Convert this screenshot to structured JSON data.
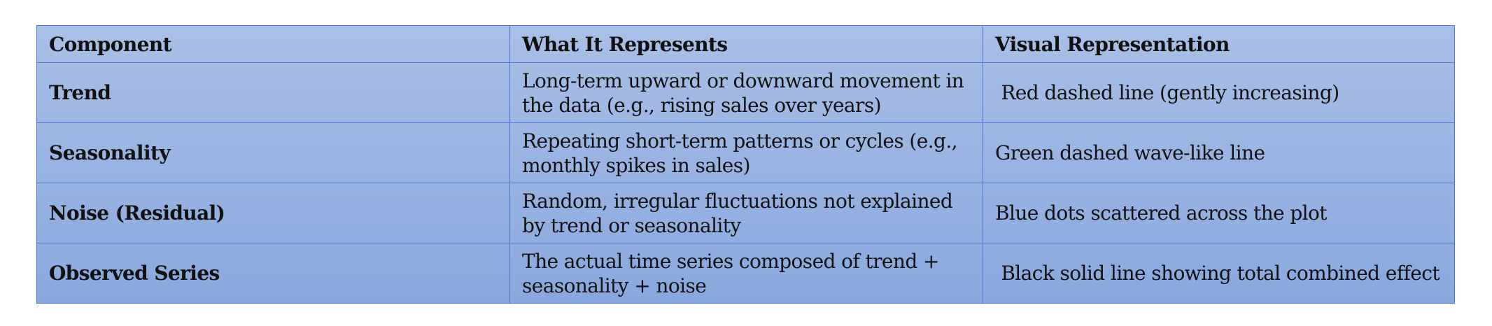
{
  "table": {
    "headers": [
      "Component",
      "What It Represents",
      "Visual Representation"
    ],
    "rows": [
      {
        "component": "Trend",
        "represents": "Long-term upward or downward movement in the data (e.g., rising sales over years)",
        "visual": " Red dashed line (gently increasing)"
      },
      {
        "component": "Seasonality",
        "represents": "Repeating short-term patterns or cycles (e.g., monthly spikes in sales)",
        "visual": "Green dashed wave-like line"
      },
      {
        "component": "Noise (Residual)",
        "represents": "Random, irregular fluctuations not explained by trend or seasonality",
        "visual": "Blue dots scattered across the plot"
      },
      {
        "component": "Observed Series",
        "represents": "The actual time series composed of trend + seasonality + noise",
        "visual": " Black solid line showing total combined effect"
      }
    ]
  }
}
